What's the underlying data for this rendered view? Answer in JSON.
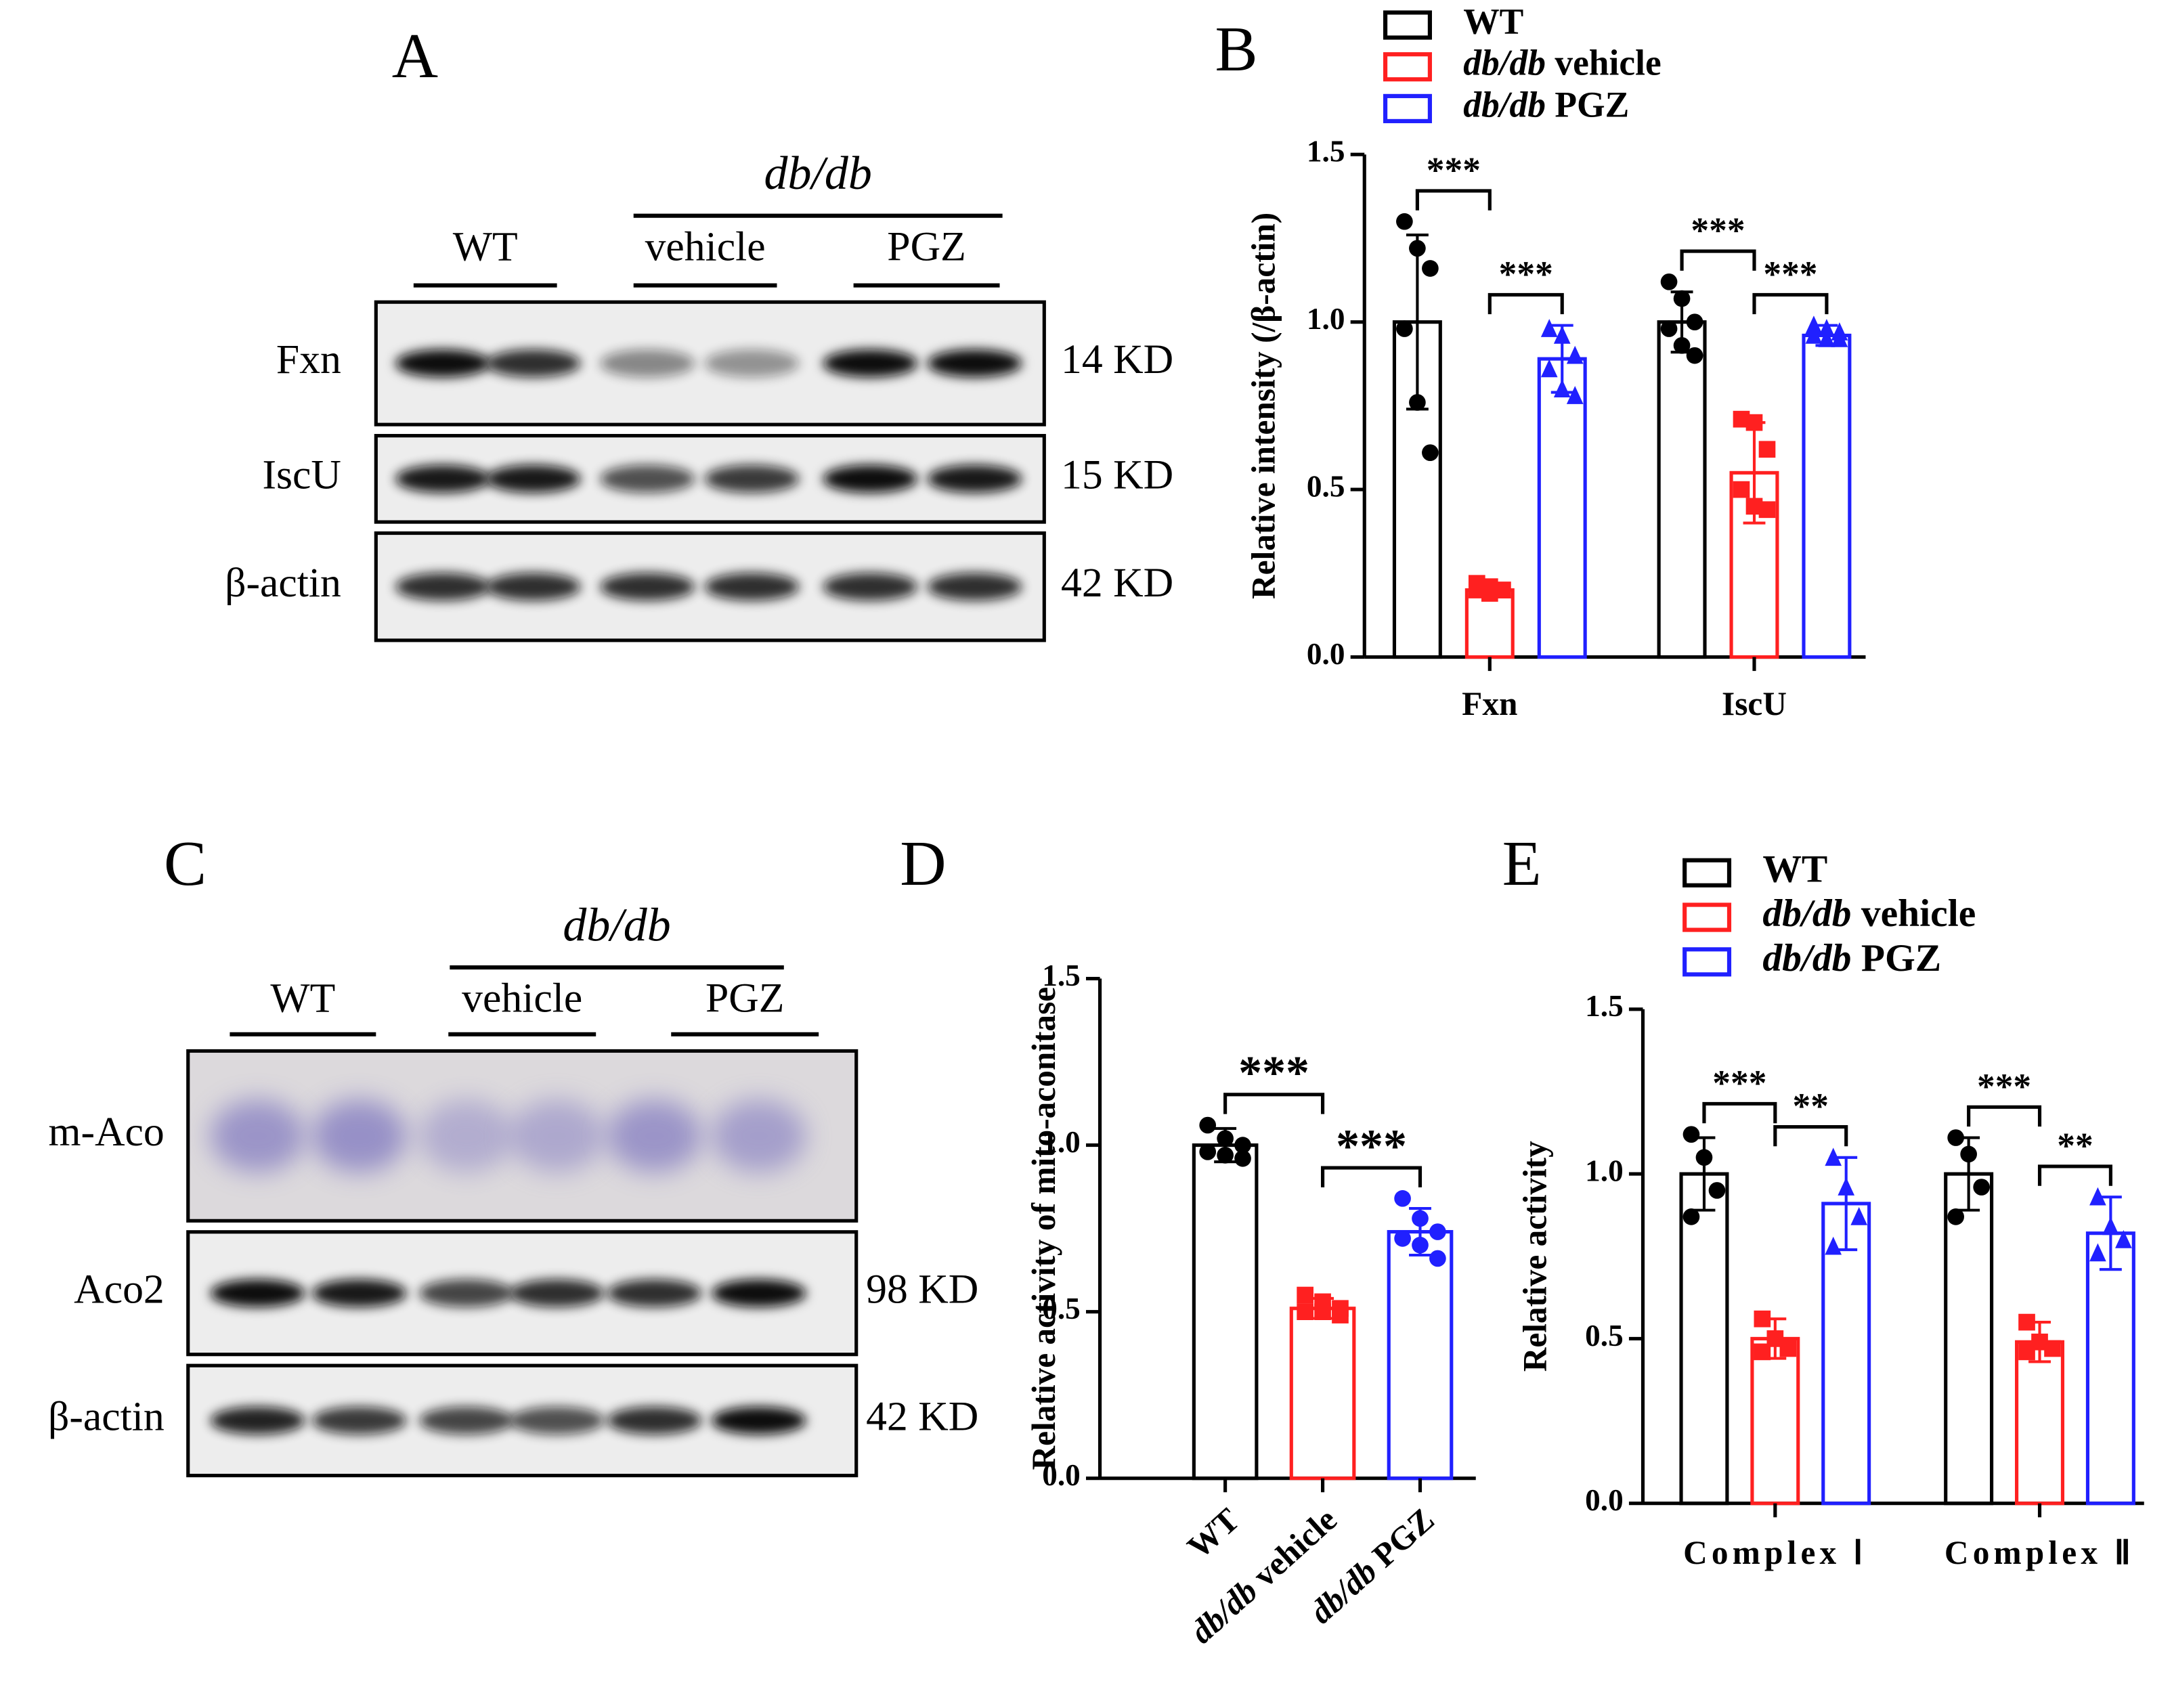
{
  "blots": [
    {
      "panel": "A",
      "group_label": "db/db",
      "lane_groups": [
        "WT",
        "vehicle",
        "PGZ"
      ],
      "rows": [
        {
          "name": "Fxn",
          "size": "14 KD"
        },
        {
          "name": "IscU",
          "size": "15 KD"
        },
        {
          "name": "β-actin",
          "size": "42 KD"
        }
      ]
    },
    {
      "panel": "C",
      "group_label": "db/db",
      "lane_groups": [
        "WT",
        "vehicle",
        "PGZ"
      ],
      "rows": [
        {
          "name": "m-Aco"
        },
        {
          "name": "Aco2",
          "size": "98 KD"
        },
        {
          "name": "β-actin",
          "size": "42 KD"
        }
      ]
    }
  ],
  "chart_data": [
    {
      "type": "bar",
      "panel": "B",
      "ylabel": "Relative intensity (/β-actin)",
      "categories": [
        "Fxn",
        "IscU"
      ],
      "ylim": [
        0,
        1.5
      ],
      "yticks": [
        {
          "value": 0,
          "label": "0.0"
        },
        0.5,
        {
          "value": 1,
          "label": "1.0"
        },
        1.5
      ],
      "series": [
        {
          "name": "WT",
          "color": "#000000",
          "marker": "circle",
          "values": [
            1.0,
            1.0
          ],
          "errors": [
            0.26,
            0.09
          ],
          "points": [
            [
              1.3,
              1.22,
              1.16,
              0.98,
              0.76,
              0.61
            ],
            [
              1.12,
              1.07,
              1.0,
              0.98,
              0.93,
              0.9
            ]
          ]
        },
        {
          "name": "db/db vehicle",
          "color": "#ff2020",
          "marker": "square",
          "values": [
            0.2,
            0.55
          ],
          "errors": [
            0.02,
            0.15
          ],
          "points": [
            [
              0.22,
              0.21,
              0.2,
              0.2,
              0.19,
              0.2
            ],
            [
              0.71,
              0.7,
              0.62,
              0.5,
              0.45,
              0.44
            ]
          ]
        },
        {
          "name": "db/db PGZ",
          "color": "#2020ff",
          "marker": "triangle",
          "values": [
            0.89,
            0.96
          ],
          "errors": [
            0.1,
            0.03
          ],
          "points": [
            [
              0.98,
              0.96,
              0.9,
              0.86,
              0.8,
              0.78
            ],
            [
              0.99,
              0.98,
              0.97,
              0.96,
              0.95,
              0.95
            ]
          ]
        }
      ],
      "annotations": [
        {
          "text": "***",
          "category": 0,
          "from": 0,
          "to": 1
        },
        {
          "text": "***",
          "category": 0,
          "from": 1,
          "to": 2
        },
        {
          "text": "***",
          "category": 1,
          "from": 0,
          "to": 1
        },
        {
          "text": "***",
          "category": 1,
          "from": 1,
          "to": 2
        }
      ]
    },
    {
      "type": "bar",
      "panel": "D",
      "ylabel": "Relative activity of mito-aconitase",
      "categories": [
        "WT",
        "db/db vehicle",
        "db/db PGZ"
      ],
      "colors": [
        "#000000",
        "#ff2020",
        "#2020ff"
      ],
      "markers": [
        "circle",
        "square",
        "circle"
      ],
      "values": [
        1.0,
        0.51,
        0.74
      ],
      "errors": [
        0.05,
        0.03,
        0.07
      ],
      "points": [
        [
          1.06,
          1.02,
          1.0,
          0.98,
          0.97,
          0.96
        ],
        [
          0.55,
          0.53,
          0.51,
          0.5,
          0.5,
          0.49
        ],
        [
          0.84,
          0.78,
          0.74,
          0.72,
          0.7,
          0.66
        ]
      ],
      "ylim": [
        0,
        1.5
      ],
      "yticks": [
        {
          "value": 0,
          "label": "0.0"
        },
        0.5,
        {
          "value": 1,
          "label": "1.0"
        },
        1.5
      ],
      "annotations": [
        {
          "text": "***",
          "from": 0,
          "to": 1
        },
        {
          "text": "***",
          "from": 1,
          "to": 2
        }
      ]
    },
    {
      "type": "bar",
      "panel": "E",
      "ylabel": "Relative activity",
      "categories": [
        "Complex Ⅰ",
        "Complex Ⅱ"
      ],
      "ylim": [
        0,
        1.5
      ],
      "yticks": [
        {
          "value": 0,
          "label": "0.0"
        },
        0.5,
        {
          "value": 1,
          "label": "1.0"
        },
        1.5
      ],
      "series": [
        {
          "name": "WT",
          "color": "#000000",
          "marker": "circle",
          "values": [
            1.0,
            1.0
          ],
          "errors": [
            0.11,
            0.11
          ],
          "points": [
            [
              1.12,
              1.05,
              0.95,
              0.87
            ],
            [
              1.11,
              1.06,
              0.96,
              0.87
            ]
          ]
        },
        {
          "name": "db/db vehicle",
          "color": "#ff2020",
          "marker": "square",
          "values": [
            0.5,
            0.49
          ],
          "errors": [
            0.06,
            0.06
          ],
          "points": [
            [
              0.56,
              0.5,
              0.47,
              0.46
            ],
            [
              0.55,
              0.49,
              0.47,
              0.46
            ]
          ]
        },
        {
          "name": "db/db PGZ",
          "color": "#2020ff",
          "marker": "triangle",
          "values": [
            0.91,
            0.82
          ],
          "errors": [
            0.14,
            0.11
          ],
          "points": [
            [
              1.05,
              0.96,
              0.87,
              0.78
            ],
            [
              0.93,
              0.84,
              0.8,
              0.76
            ]
          ]
        }
      ],
      "annotations": [
        {
          "text": "***",
          "category": 0,
          "from": 0,
          "to": 1
        },
        {
          "text": "**",
          "category": 0,
          "from": 1,
          "to": 2
        },
        {
          "text": "***",
          "category": 1,
          "from": 0,
          "to": 1
        },
        {
          "text": "**",
          "category": 1,
          "from": 1,
          "to": 2
        }
      ]
    }
  ]
}
